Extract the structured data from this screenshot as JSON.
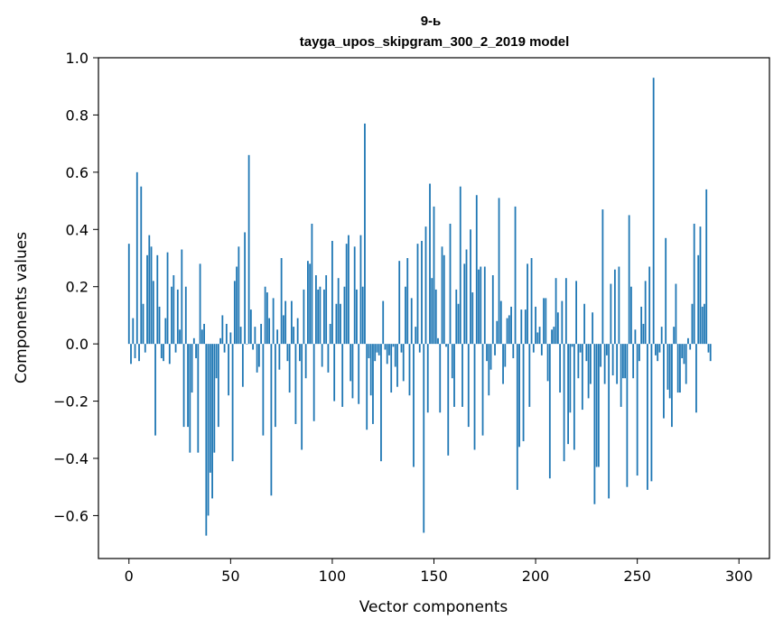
{
  "chart_data": {
    "type": "bar",
    "title_line1": "9-ь",
    "title_line2": "tayga_upos_skipgram_300_2_2019 model",
    "xlabel": "Vector components",
    "ylabel": "Components values",
    "xlim": [
      -15,
      315
    ],
    "ylim": [
      -0.75,
      1.0
    ],
    "xticks": [
      0,
      50,
      100,
      150,
      200,
      250,
      300
    ],
    "yticks": [
      -0.6,
      -0.4,
      -0.2,
      0.0,
      0.2,
      0.4,
      0.6,
      0.8,
      1.0
    ],
    "ytick_labels": [
      "−0.6",
      "−0.4",
      "−0.2",
      "0.0",
      "0.2",
      "0.4",
      "0.6",
      "0.8",
      "1.0"
    ],
    "bar_color": "#1f77b4",
    "values": [
      0.35,
      -0.07,
      0.09,
      -0.05,
      0.6,
      -0.06,
      0.55,
      0.14,
      -0.03,
      0.31,
      0.38,
      0.34,
      0.22,
      -0.32,
      0.31,
      0.13,
      -0.05,
      -0.06,
      0.09,
      0.32,
      -0.07,
      0.2,
      0.24,
      -0.03,
      0.19,
      0.05,
      0.33,
      -0.29,
      0.2,
      -0.29,
      -0.38,
      -0.17,
      0.02,
      -0.05,
      -0.38,
      0.28,
      0.05,
      0.07,
      -0.67,
      -0.6,
      -0.45,
      -0.54,
      -0.38,
      -0.12,
      -0.29,
      0.02,
      0.1,
      -0.03,
      0.07,
      -0.18,
      0.04,
      -0.41,
      0.22,
      0.27,
      0.34,
      0.06,
      -0.15,
      0.39,
      0.0,
      0.66,
      0.12,
      -0.02,
      0.06,
      -0.1,
      -0.08,
      0.07,
      -0.32,
      0.2,
      0.18,
      0.09,
      -0.53,
      0.16,
      -0.29,
      0.05,
      -0.09,
      0.3,
      0.1,
      0.15,
      -0.06,
      -0.17,
      0.15,
      0.06,
      -0.28,
      0.09,
      -0.06,
      -0.37,
      0.19,
      -0.12,
      0.29,
      0.28,
      0.42,
      -0.27,
      0.24,
      0.19,
      0.2,
      -0.08,
      0.19,
      0.24,
      -0.1,
      0.07,
      0.36,
      -0.2,
      0.14,
      0.23,
      0.14,
      -0.22,
      0.2,
      0.35,
      0.38,
      -0.13,
      -0.19,
      0.34,
      0.19,
      -0.21,
      0.38,
      0.2,
      0.77,
      -0.3,
      -0.05,
      -0.18,
      -0.28,
      -0.06,
      -0.03,
      -0.04,
      -0.41,
      0.15,
      -0.02,
      -0.07,
      -0.04,
      -0.17,
      -0.01,
      -0.08,
      -0.15,
      0.29,
      -0.03,
      -0.13,
      0.2,
      0.3,
      -0.18,
      0.16,
      -0.43,
      0.06,
      0.35,
      -0.03,
      0.36,
      -0.66,
      0.41,
      -0.24,
      0.56,
      0.23,
      0.48,
      0.19,
      0.02,
      -0.24,
      0.34,
      0.31,
      -0.01,
      -0.39,
      0.42,
      -0.12,
      -0.22,
      0.19,
      0.14,
      0.55,
      -0.22,
      0.28,
      0.33,
      -0.29,
      0.4,
      0.18,
      -0.37,
      0.52,
      0.26,
      0.27,
      -0.32,
      0.27,
      -0.06,
      -0.18,
      -0.09,
      0.24,
      -0.04,
      0.08,
      0.51,
      0.15,
      -0.14,
      -0.08,
      0.09,
      0.1,
      0.13,
      -0.05,
      0.48,
      -0.51,
      -0.36,
      0.12,
      -0.34,
      0.12,
      0.28,
      -0.22,
      0.3,
      -0.03,
      0.13,
      0.04,
      0.06,
      -0.04,
      0.16,
      0.16,
      -0.13,
      -0.47,
      0.05,
      0.06,
      0.23,
      0.11,
      -0.17,
      0.15,
      -0.41,
      0.23,
      -0.35,
      -0.24,
      -0.01,
      -0.37,
      0.22,
      -0.12,
      -0.03,
      -0.23,
      0.14,
      -0.06,
      -0.19,
      -0.14,
      0.11,
      -0.56,
      -0.43,
      -0.43,
      -0.08,
      0.47,
      -0.14,
      -0.04,
      -0.54,
      0.21,
      -0.11,
      0.26,
      -0.14,
      0.27,
      -0.22,
      -0.12,
      -0.12,
      -0.5,
      0.45,
      0.2,
      -0.12,
      0.05,
      -0.46,
      -0.06,
      0.13,
      0.07,
      0.22,
      -0.51,
      0.27,
      -0.48,
      0.93,
      -0.04,
      -0.06,
      -0.03,
      0.06,
      -0.26,
      0.37,
      -0.16,
      -0.19,
      -0.29,
      0.06,
      0.21,
      -0.17,
      -0.17,
      -0.05,
      -0.07,
      -0.14,
      0.02,
      -0.02,
      0.14,
      0.42,
      -0.24,
      0.31,
      0.41,
      0.13,
      0.14,
      0.54,
      -0.03,
      -0.06
    ]
  }
}
